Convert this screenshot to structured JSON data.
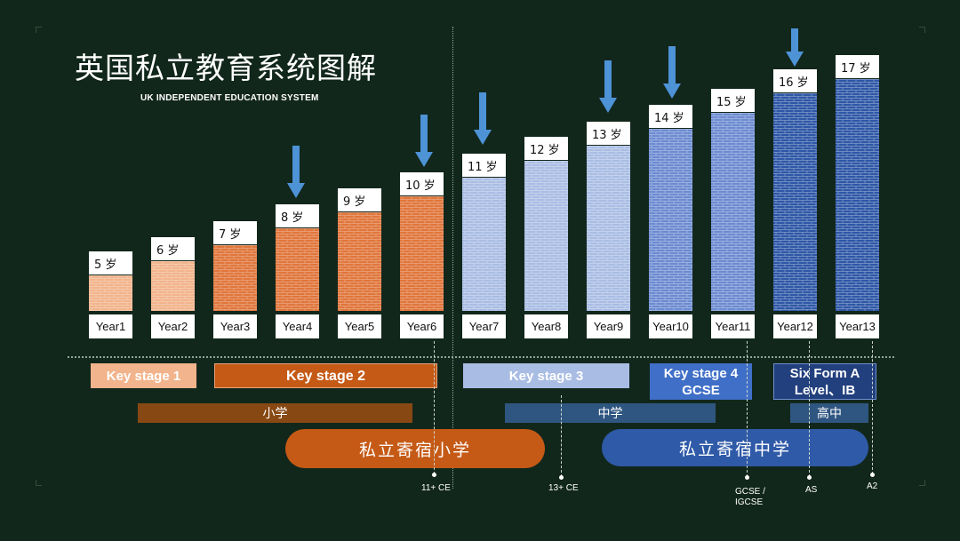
{
  "title": "英国私立教育系统图解",
  "subtitle": "UK INDEPENDENT EDUCATION SYSTEM",
  "colors": {
    "background": "#12271c",
    "orange_light": "#f2b48c",
    "orange_mid": "#e0763c",
    "orange_dark": "#c55a16",
    "blue_light": "#a9bde4",
    "blue_mid": "#6c8bd1",
    "blue_dark": "#2e57a6",
    "arrow": "#4d93d6"
  },
  "years": [
    {
      "age": "5 岁",
      "year": "Year1",
      "arrow": false,
      "tone": "orange_light"
    },
    {
      "age": "6 岁",
      "year": "Year2",
      "arrow": false,
      "tone": "orange_light"
    },
    {
      "age": "7 岁",
      "year": "Year3",
      "arrow": false,
      "tone": "orange_mid"
    },
    {
      "age": "8 岁",
      "year": "Year4",
      "arrow": true,
      "tone": "orange_mid"
    },
    {
      "age": "9 岁",
      "year": "Year5",
      "arrow": false,
      "tone": "orange_mid"
    },
    {
      "age": "10 岁",
      "year": "Year6",
      "arrow": true,
      "tone": "orange_mid"
    },
    {
      "age": "11 岁",
      "year": "Year7",
      "arrow": true,
      "tone": "blue_light"
    },
    {
      "age": "12 岁",
      "year": "Year8",
      "arrow": false,
      "tone": "blue_light"
    },
    {
      "age": "13 岁",
      "year": "Year9",
      "arrow": true,
      "tone": "blue_light"
    },
    {
      "age": "14 岁",
      "year": "Year10",
      "arrow": true,
      "tone": "blue_mid"
    },
    {
      "age": "15 岁",
      "year": "Year11",
      "arrow": false,
      "tone": "blue_mid"
    },
    {
      "age": "16 岁",
      "year": "Year12",
      "arrow": true,
      "tone": "blue_dark"
    },
    {
      "age": "17 岁",
      "year": "Year13",
      "arrow": false,
      "tone": "blue_dark"
    }
  ],
  "key_stages": [
    {
      "label": "Key stage 1"
    },
    {
      "label": "Key stage 2"
    },
    {
      "label": "Key stage 3"
    },
    {
      "label": "Key stage 4 GCSE"
    },
    {
      "label": "Six Form A Level、IB"
    }
  ],
  "schools": {
    "primary": "小学",
    "secondary": "中学",
    "high": "高中"
  },
  "boarding": {
    "prep": "私立寄宿小学",
    "senior": "私立寄宿中学"
  },
  "exams": {
    "eleven_plus": "11+ CE",
    "thirteen_plus": "13+ CE",
    "gcse": "GCSE / IGCSE",
    "as": "AS",
    "a2": "A2"
  }
}
